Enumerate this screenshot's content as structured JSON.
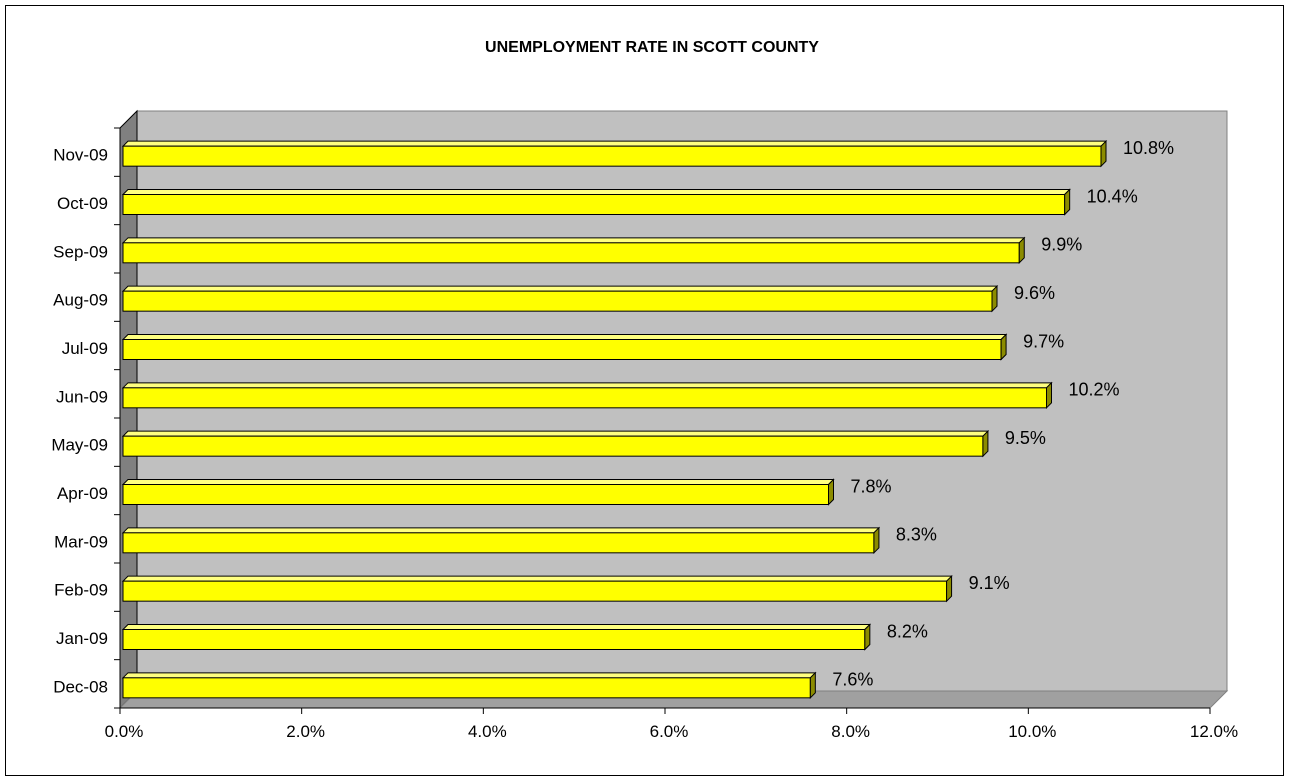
{
  "chart_data": {
    "type": "bar",
    "orientation": "horizontal",
    "title": "UNEMPLOYMENT RATE IN SCOTT COUNTY",
    "categories": [
      "Dec-08",
      "Jan-09",
      "Feb-09",
      "Mar-09",
      "Apr-09",
      "May-09",
      "Jun-09",
      "Jul-09",
      "Aug-09",
      "Sep-09",
      "Oct-09",
      "Nov-09"
    ],
    "values": [
      7.6,
      8.2,
      9.1,
      8.3,
      7.8,
      9.5,
      10.2,
      9.7,
      9.6,
      9.9,
      10.4,
      10.8
    ],
    "data_labels": [
      "7.6%",
      "8.2%",
      "9.1%",
      "8.3%",
      "7.8%",
      "9.5%",
      "10.2%",
      "9.7%",
      "9.6%",
      "9.9%",
      "10.4%",
      "10.8%"
    ],
    "xlim": [
      0,
      12
    ],
    "x_ticks": [
      "0.0%",
      "2.0%",
      "4.0%",
      "6.0%",
      "8.0%",
      "10.0%",
      "12.0%"
    ],
    "xlabel": "",
    "ylabel": "",
    "grid": false,
    "legend": "none",
    "colors": {
      "bar": "#ffff00",
      "bar_side": "#8c8c00",
      "bar_top": "#ffff80",
      "plot_back": "#c0c0c0",
      "plot_side": "#808080",
      "plot_floor": "#a0a0a0"
    }
  }
}
